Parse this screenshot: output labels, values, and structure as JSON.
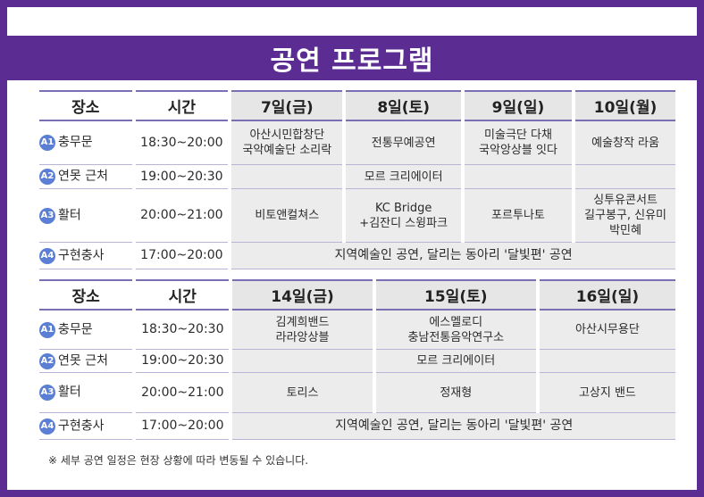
{
  "title": "공연 프로그램",
  "week1": {
    "headers": {
      "place": "장소",
      "time": "시간",
      "d1": "7일(금)",
      "d2": "8일(토)",
      "d3": "9일(일)",
      "d4": "10일(월)"
    },
    "rows": [
      {
        "pin": "A1",
        "place": "충무문",
        "time": "18:30~20:00",
        "c1": "아산시민합창단\n국악예술단 소리락",
        "c2": "전통무예공연",
        "c3": "미술극단 다채\n국악앙상블 잇다",
        "c4": "예술창작 라움"
      },
      {
        "pin": "A2",
        "place": "연못 근처",
        "time": "19:00~20:30",
        "c1": "",
        "c2": "모르 크리에이터",
        "c3": "",
        "c4": ""
      },
      {
        "pin": "A3",
        "place": "활터",
        "time": "20:00~21:00",
        "c1": "비토앤컬쳐스",
        "c2": "KC Bridge\n+김잔디 스윙파크",
        "c3": "포르투나토",
        "c4": "싱투유콘서트\n길구봉구, 신유미\n박민혜"
      },
      {
        "pin": "A4",
        "place": "구현충사",
        "time": "17:00~20:00",
        "merged": "지역예술인 공연, 달리는 동아리 '달빛편' 공연"
      }
    ]
  },
  "week2": {
    "headers": {
      "place": "장소",
      "time": "시간",
      "d1": "14일(금)",
      "d2": "15일(토)",
      "d3": "16일(일)"
    },
    "rows": [
      {
        "pin": "A1",
        "place": "충무문",
        "time": "18:30~20:30",
        "c1": "김계희밴드\n라라앙상블",
        "c2": "에스멜로디\n충남전통음악연구소",
        "c3": "아산시무용단"
      },
      {
        "pin": "A2",
        "place": "연못 근처",
        "time": "19:00~20:30",
        "c1": "",
        "c2": "모르 크리에이터",
        "c3": ""
      },
      {
        "pin": "A3",
        "place": "활터",
        "time": "20:00~21:00",
        "c1": "토리스",
        "c2": "정재형",
        "c3": "고상지 밴드"
      },
      {
        "pin": "A4",
        "place": "구현충사",
        "time": "17:00~20:00",
        "merged": "지역예술인 공연, 달리는 동아리 '달빛편' 공연"
      }
    ]
  },
  "footnote": "※ 세부 공연 일정은 현장 상황에 따라 변동될 수 있습니다.",
  "colors": {
    "brand": "#5b2c91",
    "pin": "#5b7fd4",
    "cell": "#ececec",
    "rule": "#7b6fb3"
  }
}
